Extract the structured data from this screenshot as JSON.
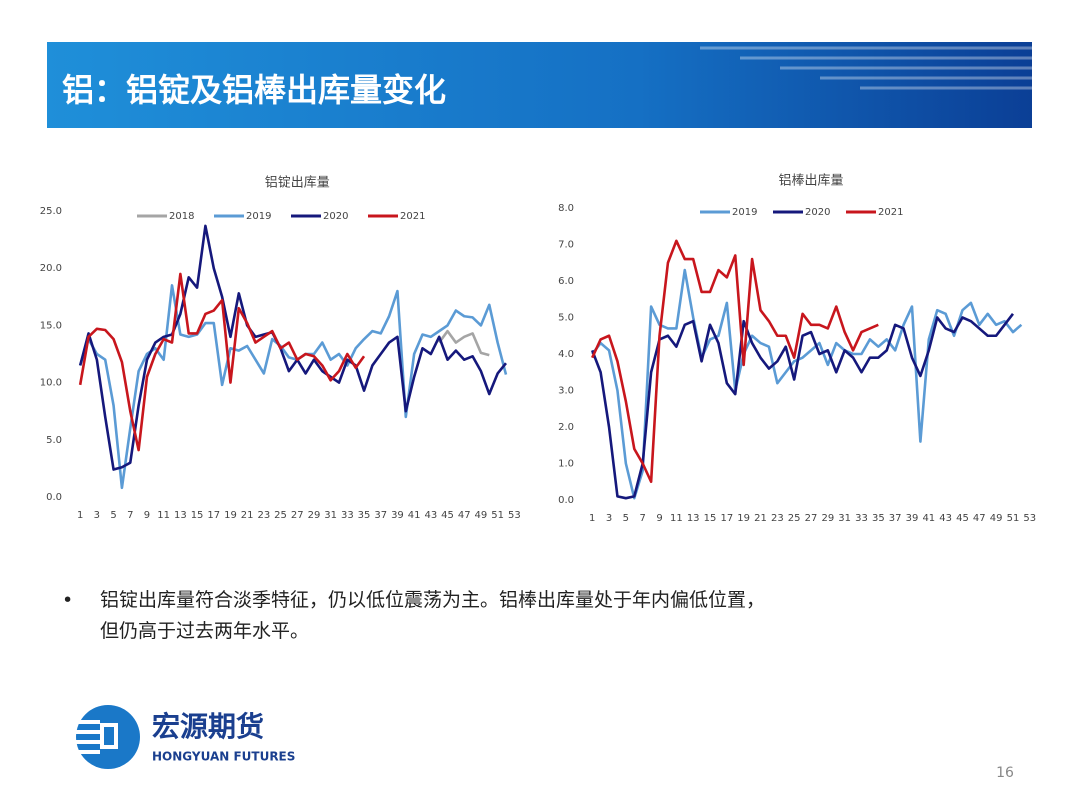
{
  "header": {
    "title": "铝：铝锭及铝棒出库量变化"
  },
  "chart_data": [
    {
      "type": "line",
      "title": "铝锭出库量",
      "x": [
        1,
        2,
        3,
        4,
        5,
        6,
        7,
        8,
        9,
        10,
        11,
        12,
        13,
        14,
        15,
        16,
        17,
        18,
        19,
        20,
        21,
        22,
        23,
        24,
        25,
        26,
        27,
        28,
        29,
        30,
        31,
        32,
        33,
        34,
        35,
        36,
        37,
        38,
        39,
        40,
        41,
        42,
        43,
        44,
        45,
        46,
        47,
        48,
        49,
        50,
        51,
        52,
        53
      ],
      "xlim": [
        0.5,
        53.5
      ],
      "xticks": [
        1,
        3,
        5,
        7,
        9,
        11,
        13,
        15,
        17,
        19,
        21,
        23,
        25,
        27,
        29,
        31,
        33,
        35,
        37,
        39,
        41,
        43,
        45,
        47,
        49,
        51,
        53
      ],
      "ylim": [
        0,
        25
      ],
      "yticks": [
        {
          "value": 0,
          "label": "0.0"
        },
        {
          "value": 5,
          "label": "5.0"
        },
        {
          "value": 10,
          "label": "10.0"
        },
        {
          "value": 15,
          "label": "15.0"
        },
        {
          "value": 20,
          "label": "20.0"
        },
        {
          "value": 25,
          "label": "25.0"
        }
      ],
      "grid": false,
      "legend": "top",
      "series": [
        {
          "name": "2018",
          "color": "#a5a5a5",
          "values": [
            null,
            null,
            null,
            null,
            null,
            null,
            null,
            null,
            null,
            null,
            null,
            null,
            null,
            null,
            null,
            null,
            null,
            null,
            null,
            null,
            null,
            null,
            null,
            null,
            null,
            null,
            null,
            null,
            null,
            null,
            null,
            null,
            null,
            null,
            null,
            null,
            null,
            null,
            null,
            null,
            null,
            null,
            null,
            13.5,
            14.5,
            13.5,
            14.0,
            14.3,
            12.6,
            12.4,
            null,
            null,
            null
          ]
        },
        {
          "name": "2019",
          "color": "#5b9bd5",
          "values": [
            11.5,
            13.8,
            12.5,
            12.0,
            8.0,
            0.8,
            6.0,
            11.0,
            12.5,
            13.0,
            12.0,
            18.5,
            14.2,
            14.0,
            14.2,
            15.2,
            15.2,
            9.8,
            13.0,
            12.8,
            13.2,
            12.0,
            10.8,
            13.8,
            13.2,
            12.2,
            12.0,
            12.5,
            12.5,
            13.5,
            12.0,
            12.5,
            11.5,
            13.0,
            13.8,
            14.5,
            14.3,
            15.8,
            18.0,
            7.0,
            12.5,
            14.2,
            14.0,
            14.5,
            15.0,
            16.3,
            15.8,
            15.7,
            15.0,
            16.8,
            13.5,
            10.7,
            null
          ]
        },
        {
          "name": "2020",
          "color": "#15187c",
          "values": [
            11.5,
            14.3,
            12.0,
            7.0,
            2.4,
            2.6,
            3.0,
            8.0,
            12.0,
            13.5,
            14.0,
            14.2,
            16.0,
            19.2,
            18.3,
            23.7,
            20.0,
            17.5,
            14.0,
            17.8,
            15.0,
            14.0,
            14.2,
            14.4,
            13.0,
            11.0,
            12.0,
            10.8,
            12.0,
            11.0,
            10.5,
            10.0,
            12.0,
            11.5,
            9.3,
            11.5,
            12.5,
            13.5,
            14.0,
            7.5,
            10.5,
            13.0,
            12.5,
            14.0,
            12.0,
            12.8,
            12.0,
            12.3,
            11.0,
            9.0,
            10.8,
            11.7,
            null
          ]
        },
        {
          "name": "2021",
          "color": "#c8161d",
          "values": [
            9.8,
            14.0,
            14.7,
            14.6,
            13.8,
            11.8,
            7.5,
            4.1,
            10.5,
            12.5,
            13.8,
            13.5,
            19.5,
            14.3,
            14.3,
            16.0,
            16.3,
            17.2,
            10.0,
            16.5,
            15.2,
            13.5,
            14.0,
            14.5,
            13.0,
            13.5,
            12.0,
            12.5,
            12.3,
            11.5,
            10.2,
            11.0,
            12.5,
            11.3,
            12.3,
            null,
            null,
            null,
            null,
            null,
            null,
            null,
            null,
            null,
            null,
            null,
            null,
            null,
            null,
            null,
            null,
            null,
            null
          ]
        }
      ]
    },
    {
      "type": "line",
      "title": "铝棒出库量",
      "x": [
        1,
        2,
        3,
        4,
        5,
        6,
        7,
        8,
        9,
        10,
        11,
        12,
        13,
        14,
        15,
        16,
        17,
        18,
        19,
        20,
        21,
        22,
        23,
        24,
        25,
        26,
        27,
        28,
        29,
        30,
        31,
        32,
        33,
        34,
        35,
        36,
        37,
        38,
        39,
        40,
        41,
        42,
        43,
        44,
        45,
        46,
        47,
        48,
        49,
        50,
        51,
        52,
        53
      ],
      "xlim": [
        0.5,
        53.5
      ],
      "xticks": [
        1,
        3,
        5,
        7,
        9,
        11,
        13,
        15,
        17,
        19,
        21,
        23,
        25,
        27,
        29,
        31,
        33,
        35,
        37,
        39,
        41,
        43,
        45,
        47,
        49,
        51,
        53
      ],
      "ylim": [
        0,
        8
      ],
      "yticks": [
        {
          "value": 0,
          "label": "0.0"
        },
        {
          "value": 1,
          "label": "1.0"
        },
        {
          "value": 2,
          "label": "2.0"
        },
        {
          "value": 3,
          "label": "3.0"
        },
        {
          "value": 4,
          "label": "4.0"
        },
        {
          "value": 5,
          "label": "5.0"
        },
        {
          "value": 6,
          "label": "6.0"
        },
        {
          "value": 7,
          "label": "7.0"
        },
        {
          "value": 8,
          "label": "8.0"
        }
      ],
      "grid": false,
      "legend": "top",
      "series": [
        {
          "name": "2019",
          "color": "#5b9bd5",
          "values": [
            4.0,
            4.3,
            4.1,
            3.0,
            1.0,
            0.05,
            0.8,
            5.3,
            4.8,
            4.7,
            4.7,
            6.3,
            5.0,
            3.9,
            4.4,
            4.5,
            5.4,
            3.0,
            4.0,
            4.5,
            4.3,
            4.2,
            3.2,
            3.5,
            3.8,
            3.9,
            4.1,
            4.3,
            3.7,
            4.3,
            4.1,
            4.0,
            4.0,
            4.4,
            4.2,
            4.4,
            4.1,
            4.8,
            5.3,
            1.6,
            4.4,
            5.2,
            5.1,
            4.5,
            5.2,
            5.4,
            4.8,
            5.1,
            4.8,
            4.9,
            4.6,
            4.8,
            null
          ]
        },
        {
          "name": "2020",
          "color": "#15187c",
          "values": [
            4.1,
            3.5,
            2.0,
            0.1,
            0.05,
            0.1,
            1.0,
            3.5,
            4.4,
            4.5,
            4.2,
            4.8,
            4.9,
            3.8,
            4.8,
            4.3,
            3.2,
            2.9,
            4.9,
            4.3,
            3.9,
            3.6,
            3.8,
            4.2,
            3.3,
            4.5,
            4.6,
            4.0,
            4.1,
            3.5,
            4.1,
            3.9,
            3.5,
            3.9,
            3.9,
            4.1,
            4.8,
            4.7,
            3.9,
            3.4,
            4.1,
            5.0,
            4.7,
            4.6,
            5.0,
            4.9,
            4.7,
            4.5,
            4.5,
            4.8,
            5.1,
            null,
            null
          ]
        },
        {
          "name": "2021",
          "color": "#c8161d",
          "values": [
            3.9,
            4.4,
            4.5,
            3.8,
            2.7,
            1.4,
            1.0,
            0.5,
            4.5,
            6.5,
            7.1,
            6.6,
            6.6,
            5.7,
            5.7,
            6.3,
            6.1,
            6.7,
            3.7,
            6.6,
            5.2,
            4.9,
            4.5,
            4.5,
            3.9,
            5.1,
            4.8,
            4.8,
            4.7,
            5.3,
            4.6,
            4.1,
            4.6,
            4.7,
            4.8,
            null,
            null,
            null,
            null,
            null,
            null,
            null,
            null,
            null,
            null,
            null,
            null,
            null,
            null,
            null,
            null,
            null,
            null
          ]
        }
      ]
    }
  ],
  "bullet": {
    "marker": "•",
    "lines": [
      "铝锭出库量符合淡季特征，仍以低位震荡为主。铝棒出库量处于年内偏低位置，",
      "但仍高于过去两年水平。"
    ]
  },
  "logo": {
    "name": "宏源期货",
    "english": "HONGYUAN FUTURES"
  },
  "page_number": 16
}
